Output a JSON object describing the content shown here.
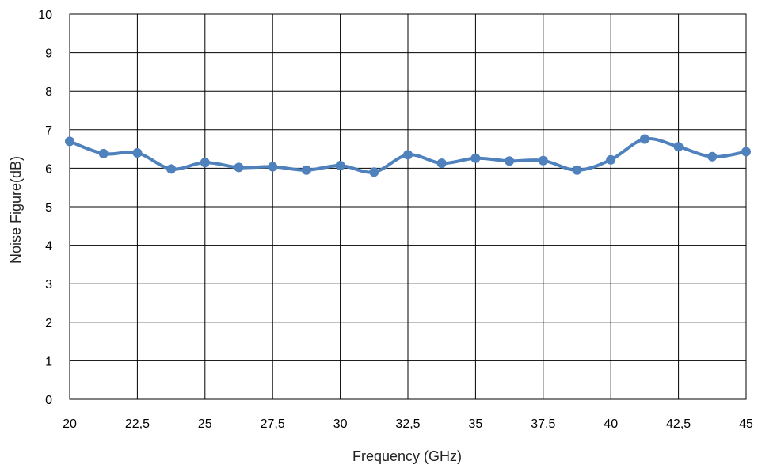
{
  "chart_data": {
    "type": "line",
    "title": "",
    "xlabel": "Frequency (GHz)",
    "ylabel": "Noise Figure(dB)",
    "xlim": [
      20,
      45
    ],
    "ylim": [
      0,
      10
    ],
    "grid": true,
    "line_color": "#4f81bd",
    "grid_color": "#000000",
    "x_ticks": [
      20,
      22.5,
      25,
      27.5,
      30,
      32.5,
      35,
      37.5,
      40,
      42.5,
      45
    ],
    "x_tick_labels": [
      "20",
      "22,5",
      "25",
      "27,5",
      "30",
      "32,5",
      "35",
      "37,5",
      "40",
      "42,5",
      "45"
    ],
    "y_ticks": [
      0,
      1,
      2,
      3,
      4,
      5,
      6,
      7,
      8,
      9,
      10
    ],
    "y_tick_labels": [
      "0",
      "1",
      "2",
      "3",
      "4",
      "5",
      "6",
      "7",
      "8",
      "9",
      "10"
    ],
    "series": [
      {
        "x": [
          20,
          21.25,
          22.5,
          23.75,
          25,
          26.25,
          27.5,
          28.75,
          30,
          31.25,
          32.5,
          33.75,
          35,
          36.25,
          37.5,
          38.75,
          40,
          41.25,
          42.5,
          43.75,
          45
        ],
        "values": [
          6.7,
          6.38,
          6.4,
          5.98,
          6.15,
          6.02,
          6.04,
          5.95,
          6.07,
          5.9,
          6.35,
          6.13,
          6.26,
          6.19,
          6.2,
          5.95,
          6.22,
          6.76,
          6.56,
          6.3,
          6.43
        ]
      }
    ]
  }
}
